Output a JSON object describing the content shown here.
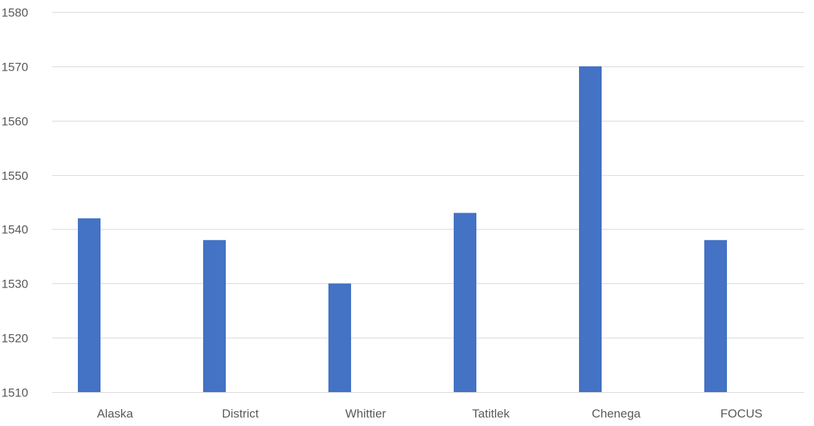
{
  "chart_data": {
    "type": "bar",
    "title": "",
    "xlabel": "",
    "ylabel": "",
    "categories": [
      "Alaska",
      "District",
      "Whittier",
      "Tatitlek",
      "Chenega",
      "FOCUS"
    ],
    "series": [
      {
        "values": [
          1542,
          1538,
          1530,
          1543,
          1570,
          1538
        ],
        "color": "#4472C4"
      }
    ],
    "ylim": [
      1510,
      1580
    ],
    "yticks": [
      1510,
      1520,
      1530,
      1540,
      1550,
      1560,
      1570,
      1580
    ],
    "grid": true,
    "legend": "none"
  }
}
